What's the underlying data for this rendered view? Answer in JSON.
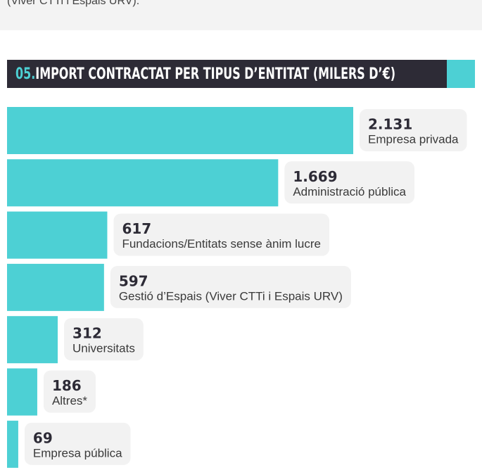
{
  "intro": {
    "text": "(Viver CTTi i Espais URV)."
  },
  "chart_data": {
    "type": "hbar",
    "section": "05.",
    "title": "IMPORT CONTRACTAT PER TIPUS D’ENTITAT (MILERS D’€)",
    "categories": [
      "Empresa privada",
      "Administració pública",
      "Fundacions/Entitats sense ànim lucre",
      "Gestió d’Espais (Viver CTTi i Espais URV)",
      "Universitats",
      "Altres*",
      "Empresa pública"
    ],
    "values": [
      2131,
      1669,
      617,
      597,
      312,
      186,
      69
    ],
    "value_labels": [
      "2.131",
      "1.669",
      "617",
      "597",
      "312",
      "186",
      "69"
    ],
    "color": "#4dd0d4",
    "xlim": [
      0,
      2131
    ]
  }
}
